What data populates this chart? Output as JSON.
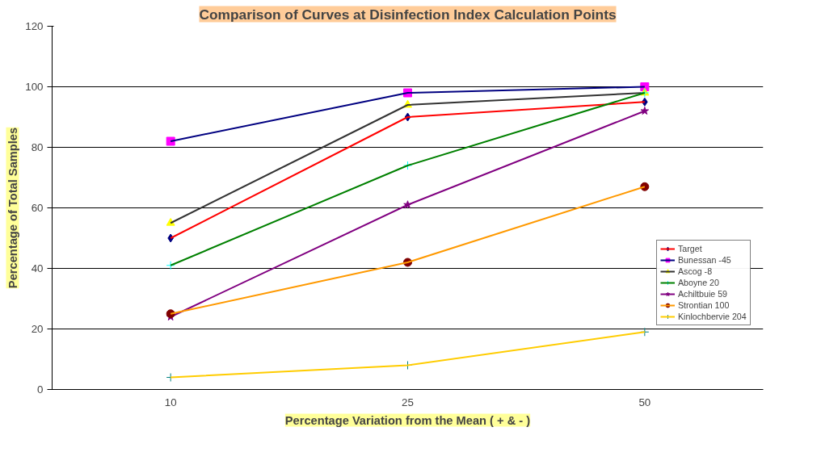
{
  "chart_data": {
    "type": "line",
    "title": "Comparison of Curves at Disinfection Index Calculation Points",
    "xlabel": "Percentage Variation from the Mean ( + & - )",
    "ylabel": "Percentage of Total Samples",
    "categories": [
      "10",
      "25",
      "50"
    ],
    "ylim": [
      0,
      120
    ],
    "yticks": [
      0,
      20,
      40,
      60,
      80,
      100,
      120
    ],
    "grid": "y",
    "legend": "right",
    "series": [
      {
        "name": "Target",
        "color": "#ff0000",
        "marker": "diamond",
        "colors": [
          "#000080",
          "#000080",
          "#000080"
        ],
        "values": [
          50,
          90,
          95
        ]
      },
      {
        "name": "Bunessan -45",
        "color": "#000080",
        "marker": "square",
        "colors": [
          "#ff00ff",
          "#ff00ff",
          "#ff00ff"
        ],
        "values": [
          82,
          98,
          100
        ]
      },
      {
        "name": "Ascog -8",
        "color": "#333333",
        "marker": "triangle",
        "colors": [
          "#ffff00",
          "#ffff00",
          "#ffff00"
        ],
        "values": [
          55,
          94,
          98
        ]
      },
      {
        "name": "Aboyne 20",
        "color": "#008000",
        "marker": "cross",
        "colors": [
          "#00ffff",
          "#00ffff",
          "#00ffff"
        ],
        "values": [
          41,
          74,
          98
        ]
      },
      {
        "name": "Achiltbuie 59",
        "color": "#800080",
        "marker": "star",
        "colors": [
          "#800080",
          "#800080",
          "#800080"
        ],
        "values": [
          24,
          61,
          92
        ]
      },
      {
        "name": "Strontian 100",
        "color": "#ff9900",
        "marker": "circle",
        "colors": [
          "#800000",
          "#800000",
          "#800000"
        ],
        "values": [
          25,
          42,
          67
        ]
      },
      {
        "name": "Kinlochbervie 204",
        "color": "#ffcc00",
        "marker": "cross",
        "colors": [
          "#008080",
          "#008080",
          "#008080"
        ],
        "values": [
          4,
          8,
          19
        ]
      }
    ]
  }
}
